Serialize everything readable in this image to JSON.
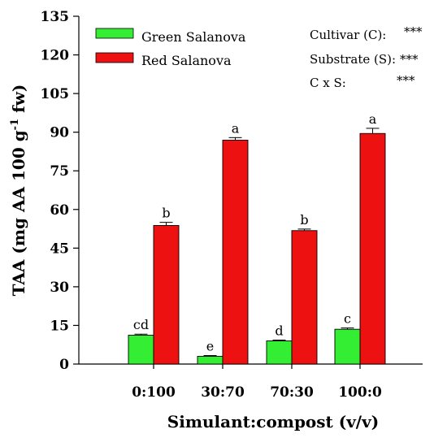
{
  "chart_data": {
    "type": "bar",
    "xlabel": "Simulant:compost (v/v)",
    "ylabel_main": "TAA (mg AA 100 g",
    "ylabel_sup": "-1",
    "ylabel_tail": " fw)",
    "ylim": [
      0,
      135
    ],
    "yticks": [
      0,
      15,
      30,
      45,
      60,
      75,
      90,
      105,
      120,
      135
    ],
    "categories": [
      "0:100",
      "30:70",
      "70:30",
      "100:0"
    ],
    "series": [
      {
        "name": "Green Salanova",
        "color": "#33ee33",
        "values": [
          11.2,
          3.0,
          9.0,
          13.5
        ],
        "errors": [
          0.4,
          0.3,
          0.3,
          0.5
        ],
        "labels": [
          "cd",
          "e",
          "d",
          "c"
        ]
      },
      {
        "name": "Red Salanova",
        "color": "#ee1111",
        "values": [
          53.8,
          86.9,
          51.8,
          89.5
        ],
        "errors": [
          1.2,
          1.0,
          0.6,
          2.0
        ],
        "labels": [
          "b",
          "a",
          "b",
          "a"
        ]
      }
    ],
    "legend_position": "top-left",
    "stats": [
      {
        "label": "Cultivar (C):",
        "value": "***"
      },
      {
        "label": "Substrate (S):",
        "value": "***"
      },
      {
        "label": "C x S:",
        "value": "***"
      }
    ]
  }
}
